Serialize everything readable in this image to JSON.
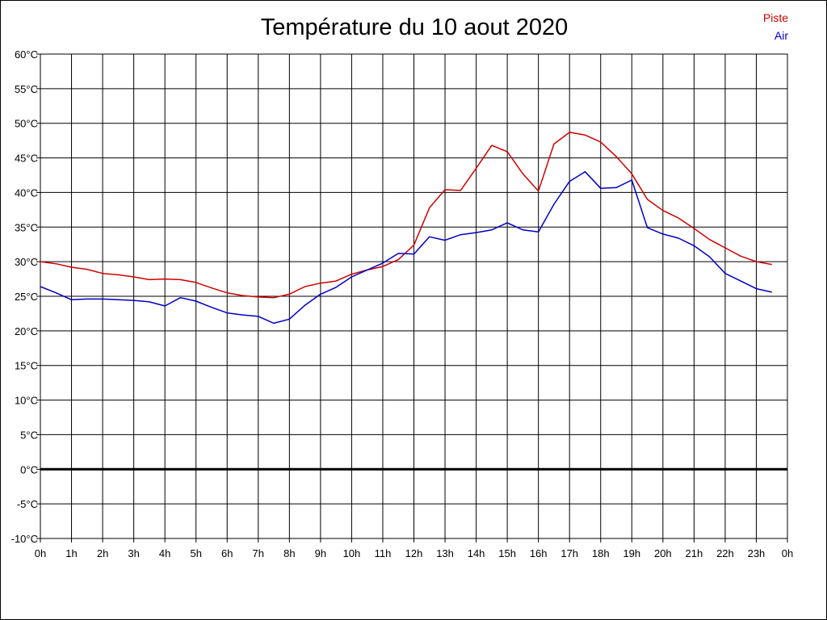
{
  "chart_data": {
    "type": "line",
    "title": "Température du 10 aout 2020",
    "x_tick_labels": [
      "0h",
      "1h",
      "2h",
      "3h",
      "4h",
      "5h",
      "6h",
      "7h",
      "8h",
      "9h",
      "10h",
      "11h",
      "12h",
      "13h",
      "14h",
      "15h",
      "16h",
      "17h",
      "18h",
      "19h",
      "20h",
      "21h",
      "22h",
      "23h",
      "0h"
    ],
    "y_tick_labels": [
      "60°C",
      "55°C",
      "50°C",
      "45°C",
      "40°C",
      "35°C",
      "30°C",
      "25°C",
      "20°C",
      "15°C",
      "10°C",
      "5°C",
      "0°C",
      "-5°C",
      "-10°C"
    ],
    "xlim": [
      0,
      24
    ],
    "ylim": [
      -10,
      60
    ],
    "grid": true,
    "legend_position": "top-right",
    "series": [
      {
        "name": "Piste",
        "color": "#d00000",
        "x": [
          0,
          0.5,
          1,
          1.5,
          2,
          2.5,
          3,
          3.5,
          4,
          4.5,
          5,
          5.5,
          6,
          6.5,
          7,
          7.5,
          8,
          8.5,
          9,
          9.5,
          10,
          10.5,
          11,
          11.5,
          12,
          12.5,
          13,
          13.5,
          14,
          14.5,
          15,
          15.5,
          16,
          16.5,
          17,
          17.5,
          18,
          18.5,
          19,
          19.5,
          20,
          20.5,
          21,
          21.5,
          22,
          22.5,
          23,
          23.5
        ],
        "values": [
          30,
          29.7,
          29.2,
          28.9,
          28.3,
          28.1,
          27.8,
          27.4,
          27.5,
          27.4,
          27.0,
          26.2,
          25.5,
          25.1,
          24.9,
          24.8,
          25.3,
          26.4,
          26.9,
          27.2,
          28.2,
          28.8,
          29.3,
          30.3,
          32.4,
          37.8,
          40.4,
          40.3,
          43.5,
          46.8,
          45.9,
          42.7,
          40.2,
          47.0,
          48.7,
          48.3,
          47.3,
          45.2,
          42.7,
          39.0,
          37.4,
          36.3,
          34.8,
          33.2,
          32.0,
          30.8,
          30.0,
          29.6
        ]
      },
      {
        "name": "Air",
        "color": "#0000c8",
        "x": [
          0,
          0.5,
          1,
          1.5,
          2,
          2.5,
          3,
          3.5,
          4,
          4.5,
          5,
          5.5,
          6,
          6.5,
          7,
          7.5,
          8,
          8.5,
          9,
          9.5,
          10,
          10.5,
          11,
          11.5,
          12,
          12.5,
          13,
          13.5,
          14,
          14.5,
          15,
          15.5,
          16,
          16.5,
          17,
          17.5,
          18,
          18.5,
          19,
          19.5,
          20,
          20.5,
          21,
          21.5,
          22,
          22.5,
          23,
          23.5
        ],
        "values": [
          26.4,
          25.5,
          24.5,
          24.6,
          24.6,
          24.5,
          24.4,
          24.2,
          23.6,
          24.8,
          24.3,
          23.4,
          22.6,
          22.3,
          22.1,
          21.1,
          21.7,
          23.7,
          25.3,
          26.3,
          27.8,
          28.8,
          29.8,
          31.2,
          31.1,
          33.6,
          33.1,
          33.9,
          34.2,
          34.6,
          35.6,
          34.6,
          34.3,
          38.3,
          41.6,
          43.0,
          40.6,
          40.7,
          41.8,
          34.9,
          34.0,
          33.4,
          32.3,
          30.7,
          28.3,
          27.2,
          26.1,
          25.6
        ]
      }
    ]
  }
}
